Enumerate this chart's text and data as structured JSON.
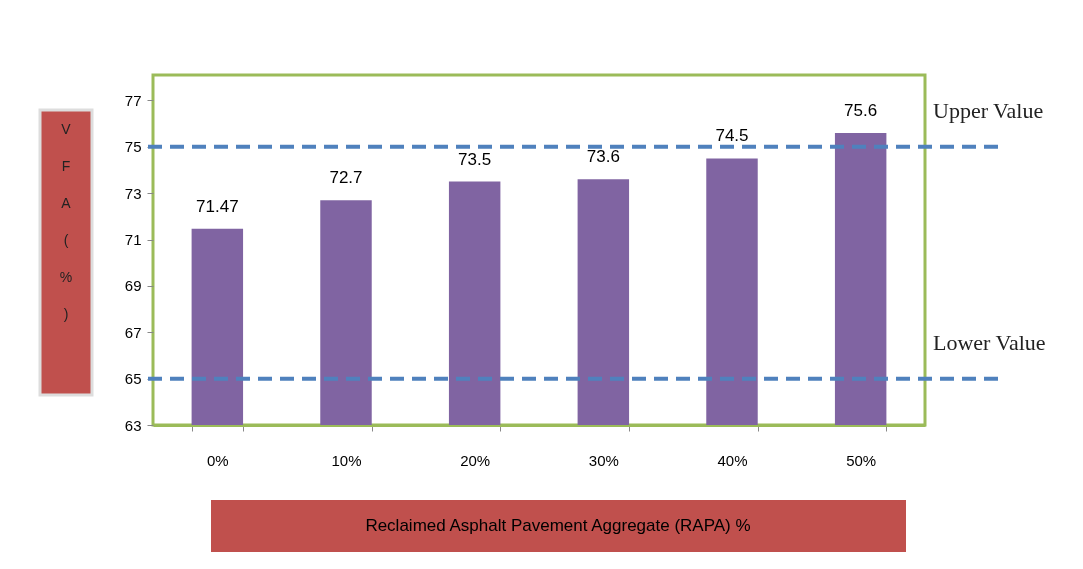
{
  "chart_data": {
    "type": "bar",
    "categories": [
      "0%",
      "10%",
      "20%",
      "30%",
      "40%",
      "50%"
    ],
    "values": [
      71.47,
      72.7,
      73.5,
      73.6,
      74.5,
      75.6
    ],
    "color": "#8064a2",
    "data_labels": true,
    "xlabel": "Reclaimed Asphalt  Pavement  Aggregate (RAPA) %",
    "ylabel": "VFA (%)",
    "ylim": [
      63,
      78.1
    ],
    "yticks": [
      63,
      65,
      67,
      69,
      71,
      73,
      75,
      77
    ],
    "ref_lines": [
      {
        "axis": "y",
        "value": 75,
        "label": "Upper Value",
        "color": "#4f81bd",
        "line_style": "dashed"
      },
      {
        "axis": "y",
        "value": 65,
        "label": "Lower Value",
        "color": "#4f81bd",
        "line_style": "dashed"
      }
    ],
    "grid": false
  }
}
